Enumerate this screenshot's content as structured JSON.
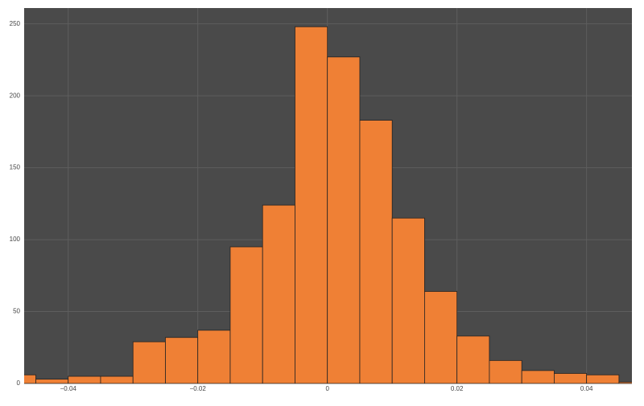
{
  "chart_data": {
    "type": "histogram",
    "bins": [
      -0.05,
      -0.045,
      -0.04,
      -0.035,
      -0.03,
      -0.025,
      -0.02,
      -0.015,
      -0.01,
      -0.005,
      0,
      0.005,
      0.01,
      0.015,
      0.02,
      0.025,
      0.03,
      0.035,
      0.04,
      0.045,
      0.05
    ],
    "values": [
      6,
      3,
      5,
      5,
      29,
      32,
      37,
      95,
      124,
      248,
      227,
      183,
      115,
      64,
      33,
      16,
      9,
      7,
      6,
      1
    ],
    "color": "#ef8035",
    "xlim": [
      -0.0468,
      0.047
    ],
    "ylim": [
      0,
      261
    ],
    "xticks": [
      {
        "value": -0.04,
        "label": "−0.04"
      },
      {
        "value": -0.02,
        "label": "−0.02"
      },
      0,
      0.02,
      0.04
    ],
    "yticks": [
      0,
      50,
      100,
      150,
      200,
      250
    ],
    "grid": true
  }
}
